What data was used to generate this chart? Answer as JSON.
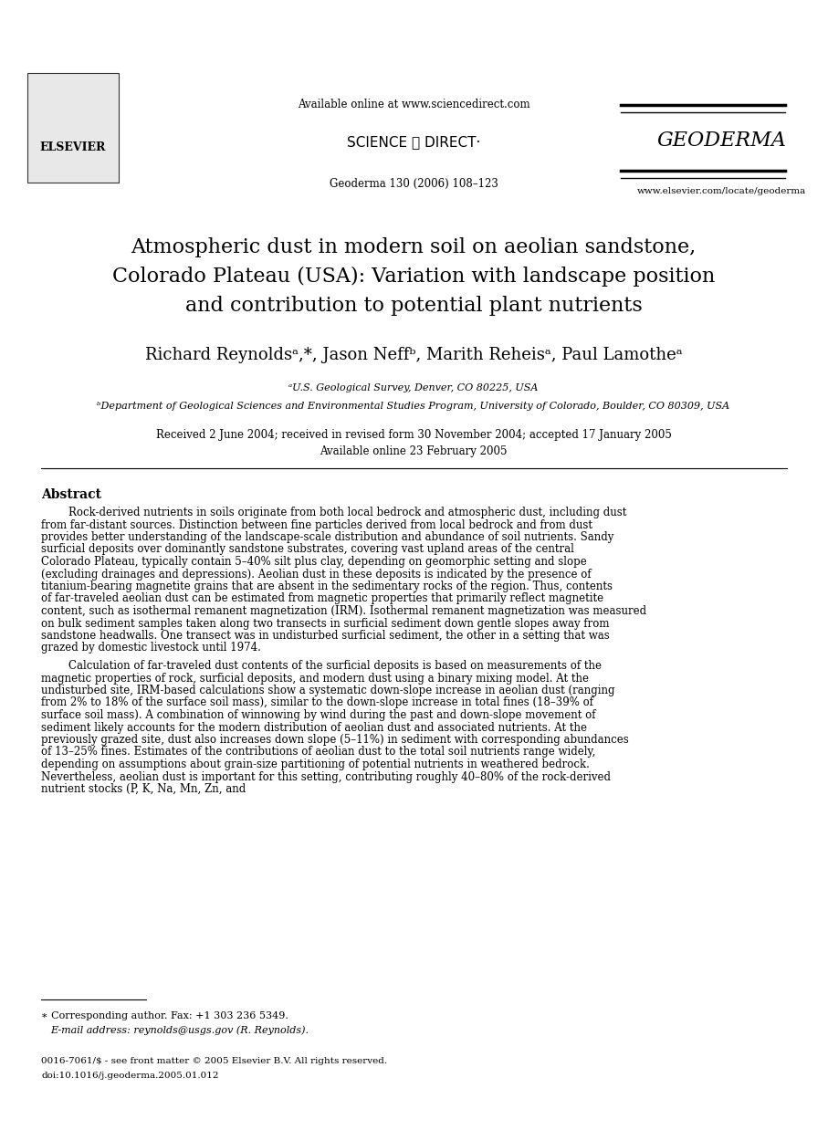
{
  "bg_color": "#ffffff",
  "header_available_online": "Available online at www.sciencedirect.com",
  "header_journal_ref": "Geoderma 130 (2006) 108–123",
  "header_geoderma": "GEODERMA",
  "header_elsevier": "ELSEVIER",
  "header_sciencedirect": "SCIENCE ⓓ DIRECT·",
  "header_www": "www.elsevier.com/locate/geoderma",
  "title_line1": "Atmospheric dust in modern soil on aeolian sandstone,",
  "title_line2": "Colorado Plateau (USA): Variation with landscape position",
  "title_line3": "and contribution to potential plant nutrients",
  "authors": "Richard Reynoldsᵃ,*, Jason Neffᵇ, Marith Reheisᵃ, Paul Lamotheᵃ",
  "affil_a": "ᵃU.S. Geological Survey, Denver, CO 80225, USA",
  "affil_b": "ᵇDepartment of Geological Sciences and Environmental Studies Program, University of Colorado, Boulder, CO 80309, USA",
  "received": "Received 2 June 2004; received in revised form 30 November 2004; accepted 17 January 2005",
  "available_online": "Available online 23 February 2005",
  "abstract_label": "Abstract",
  "abstract_p1": "Rock-derived nutrients in soils originate from both local bedrock and atmospheric dust, including dust from far-distant sources. Distinction between fine particles derived from local bedrock and from dust provides better understanding of the landscape-scale distribution and abundance of soil nutrients. Sandy surficial deposits over dominantly sandstone substrates, covering vast upland areas of the central Colorado Plateau, typically contain 5–40% silt plus clay, depending on geomorphic setting and slope (excluding drainages and depressions). Aeolian dust in these deposits is indicated by the presence of titanium-bearing magnetite grains that are absent in the sedimentary rocks of the region. Thus, contents of far-traveled aeolian dust can be estimated from magnetic properties that primarily reflect magnetite content, such as isothermal remanent magnetization (IRM). Isothermal remanent magnetization was measured on bulk sediment samples taken along two transects in surficial sediment down gentle slopes away from sandstone headwalls. One transect was in undisturbed surficial sediment, the other in a setting that was grazed by domestic livestock until 1974.",
  "abstract_p2": "    Calculation of far-traveled dust contents of the surficial deposits is based on measurements of the magnetic properties of rock, surficial deposits, and modern dust using a binary mixing model. At the undisturbed site, IRM-based calculations show a systematic down-slope increase in aeolian dust (ranging from 2% to 18% of the surface soil mass), similar to the down-slope increase in total fines (18–39% of surface soil mass). A combination of winnowing by wind during the past and down-slope movement of sediment likely accounts for the modern distribution of aeolian dust and associated nutrients. At the previously grazed site, dust also increases down slope (5–11%) in sediment with corresponding abundances of 13–25% fines. Estimates of the contributions of aeolian dust to the total soil nutrients range widely, depending on assumptions about grain-size partitioning of potential nutrients in weathered bedrock. Nevertheless, aeolian dust is important for this setting, contributing roughly 40–80% of the rock-derived nutrient stocks (P, K, Na, Mn, Zn, and",
  "footnote_star": "∗ Corresponding author. Fax: +1 303 236 5349.",
  "footnote_email": "E-mail address: reynolds@usgs.gov (R. Reynolds).",
  "footer_line1": "0016-7061/$ - see front matter © 2005 Elsevier B.V. All rights reserved.",
  "footer_line2": "doi:10.1016/j.geoderma.2005.01.012"
}
